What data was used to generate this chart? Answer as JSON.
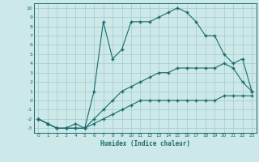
{
  "background_color": "#cce8e8",
  "grid_color": "#aacfcf",
  "line_color": "#1a6b6b",
  "xlabel": "Humidex (Indice chaleur)",
  "xlim": [
    -0.5,
    23.5
  ],
  "ylim": [
    -3.5,
    10.5
  ],
  "xticks": [
    0,
    1,
    2,
    3,
    4,
    5,
    6,
    7,
    8,
    9,
    10,
    11,
    12,
    13,
    14,
    15,
    16,
    17,
    18,
    19,
    20,
    21,
    22,
    23
  ],
  "yticks": [
    -3,
    -2,
    -1,
    0,
    1,
    2,
    3,
    4,
    5,
    6,
    7,
    8,
    9,
    10
  ],
  "series1_x": [
    0,
    1,
    2,
    3,
    4,
    5,
    6,
    7,
    8,
    9,
    10,
    11,
    12,
    13,
    14,
    15,
    16,
    17,
    18,
    19,
    20,
    21,
    22,
    23
  ],
  "series1_y": [
    -2,
    -2.5,
    -3,
    -3,
    -3,
    -3,
    -2.5,
    -2,
    -1.5,
    -1,
    -0.5,
    0,
    0,
    0,
    0,
    0,
    0,
    0,
    0,
    0,
    0.5,
    0.5,
    0.5,
    0.5
  ],
  "series2_x": [
    0,
    1,
    2,
    3,
    4,
    5,
    6,
    7,
    8,
    9,
    10,
    11,
    12,
    13,
    14,
    15,
    16,
    17,
    18,
    19,
    20,
    21,
    22,
    23
  ],
  "series2_y": [
    -2,
    -2.5,
    -3,
    -3,
    -3,
    -3,
    -2,
    -1,
    0,
    1,
    1.5,
    2,
    2.5,
    3,
    3,
    3.5,
    3.5,
    3.5,
    3.5,
    3.5,
    4,
    3.5,
    2,
    1
  ],
  "series3_x": [
    0,
    1,
    2,
    3,
    4,
    5,
    6,
    7,
    8,
    9,
    10,
    11,
    12,
    13,
    14,
    15,
    16,
    17,
    18,
    19,
    20,
    21,
    22,
    23
  ],
  "series3_y": [
    -2,
    -2.5,
    -3,
    -3,
    -2.5,
    -3,
    1,
    8.5,
    4.5,
    5.5,
    8.5,
    8.5,
    8.5,
    9,
    9.5,
    10,
    9.5,
    8.5,
    7,
    7,
    5,
    4,
    4.5,
    1
  ]
}
